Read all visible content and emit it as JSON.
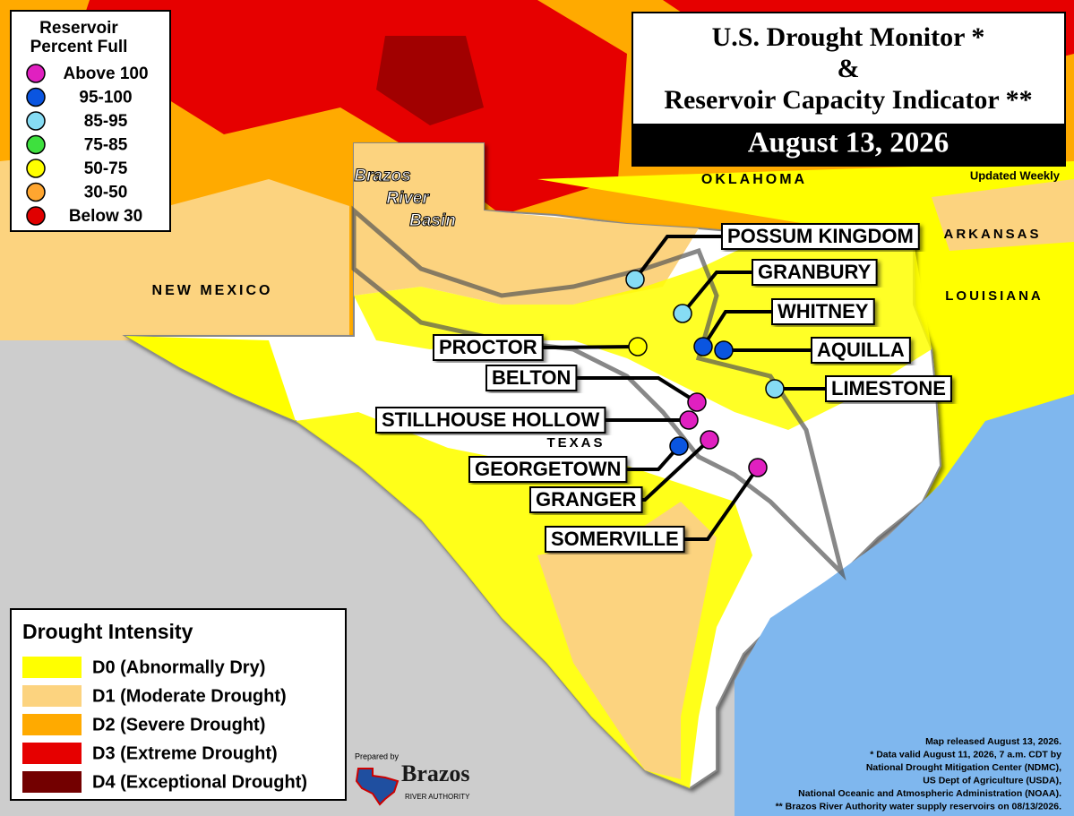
{
  "title": {
    "line1": "U.S. Drought Monitor *",
    "line2": "&",
    "line3": "Reservoir Capacity Indicator **",
    "date": "August 13, 2026",
    "updated": "Updated Weekly"
  },
  "reservoir_legend": {
    "title": [
      "Reservoir",
      "Percent Full"
    ],
    "items": [
      {
        "label": "Above 100",
        "color": "#e020c0"
      },
      {
        "label": "95-100",
        "color": "#0a55e0"
      },
      {
        "label": "85-95",
        "color": "#86dcf4"
      },
      {
        "label": "75-85",
        "color": "#3ee03e"
      },
      {
        "label": "50-75",
        "color": "#ffff00"
      },
      {
        "label": "30-50",
        "color": "#ffa630"
      },
      {
        "label": "Below 30",
        "color": "#e00000"
      }
    ]
  },
  "drought_legend": {
    "title": "Drought Intensity",
    "items": [
      {
        "label": "D0 (Abnormally Dry)",
        "color": "#ffff00"
      },
      {
        "label": "D1 (Moderate Drought)",
        "color": "#fcd37f"
      },
      {
        "label": "D2 (Severe Drought)",
        "color": "#ffaa00"
      },
      {
        "label": "D3 (Extreme Drought)",
        "color": "#e60000"
      },
      {
        "label": "D4 (Exceptional Drought)",
        "color": "#730000"
      }
    ]
  },
  "map_labels": {
    "new_mexico": "NEW MEXICO",
    "oklahoma": "OKLAHOMA",
    "arkansas": "ARKANSAS",
    "louisiana": "LOUISIANA",
    "texas": "TEXAS",
    "basin": [
      "Brazos",
      "River",
      "Basin"
    ]
  },
  "reservoirs": [
    {
      "name": "POSSUM KINGDOM",
      "level": "85-95"
    },
    {
      "name": "GRANBURY",
      "level": "85-95"
    },
    {
      "name": "WHITNEY",
      "level": "95-100"
    },
    {
      "name": "AQUILLA",
      "level": "95-100"
    },
    {
      "name": "PROCTOR",
      "level": "50-75"
    },
    {
      "name": "BELTON",
      "level": "Above 100"
    },
    {
      "name": "LIMESTONE",
      "level": "85-95"
    },
    {
      "name": "STILLHOUSE HOLLOW",
      "level": "Above 100"
    },
    {
      "name": "GEORGETOWN",
      "level": "95-100"
    },
    {
      "name": "GRANGER",
      "level": "Above 100"
    },
    {
      "name": "SOMERVILLE",
      "level": "Above 100"
    }
  ],
  "credits": {
    "prepared_by": "Prepared by",
    "logo": "Brazos",
    "logo_sub": "RIVER AUTHORITY",
    "notes": [
      "Map released August 13, 2026.",
      "* Data valid August 11, 2026, 7 a.m. CDT by",
      "National Drought Mitigation Center (NDMC),",
      "US Dept of Agriculture (USDA),",
      "National Oceanic and Atmospheric Administration (NOAA).",
      "** Brazos River Authority water supply reservoirs on 08/13/2026."
    ]
  }
}
